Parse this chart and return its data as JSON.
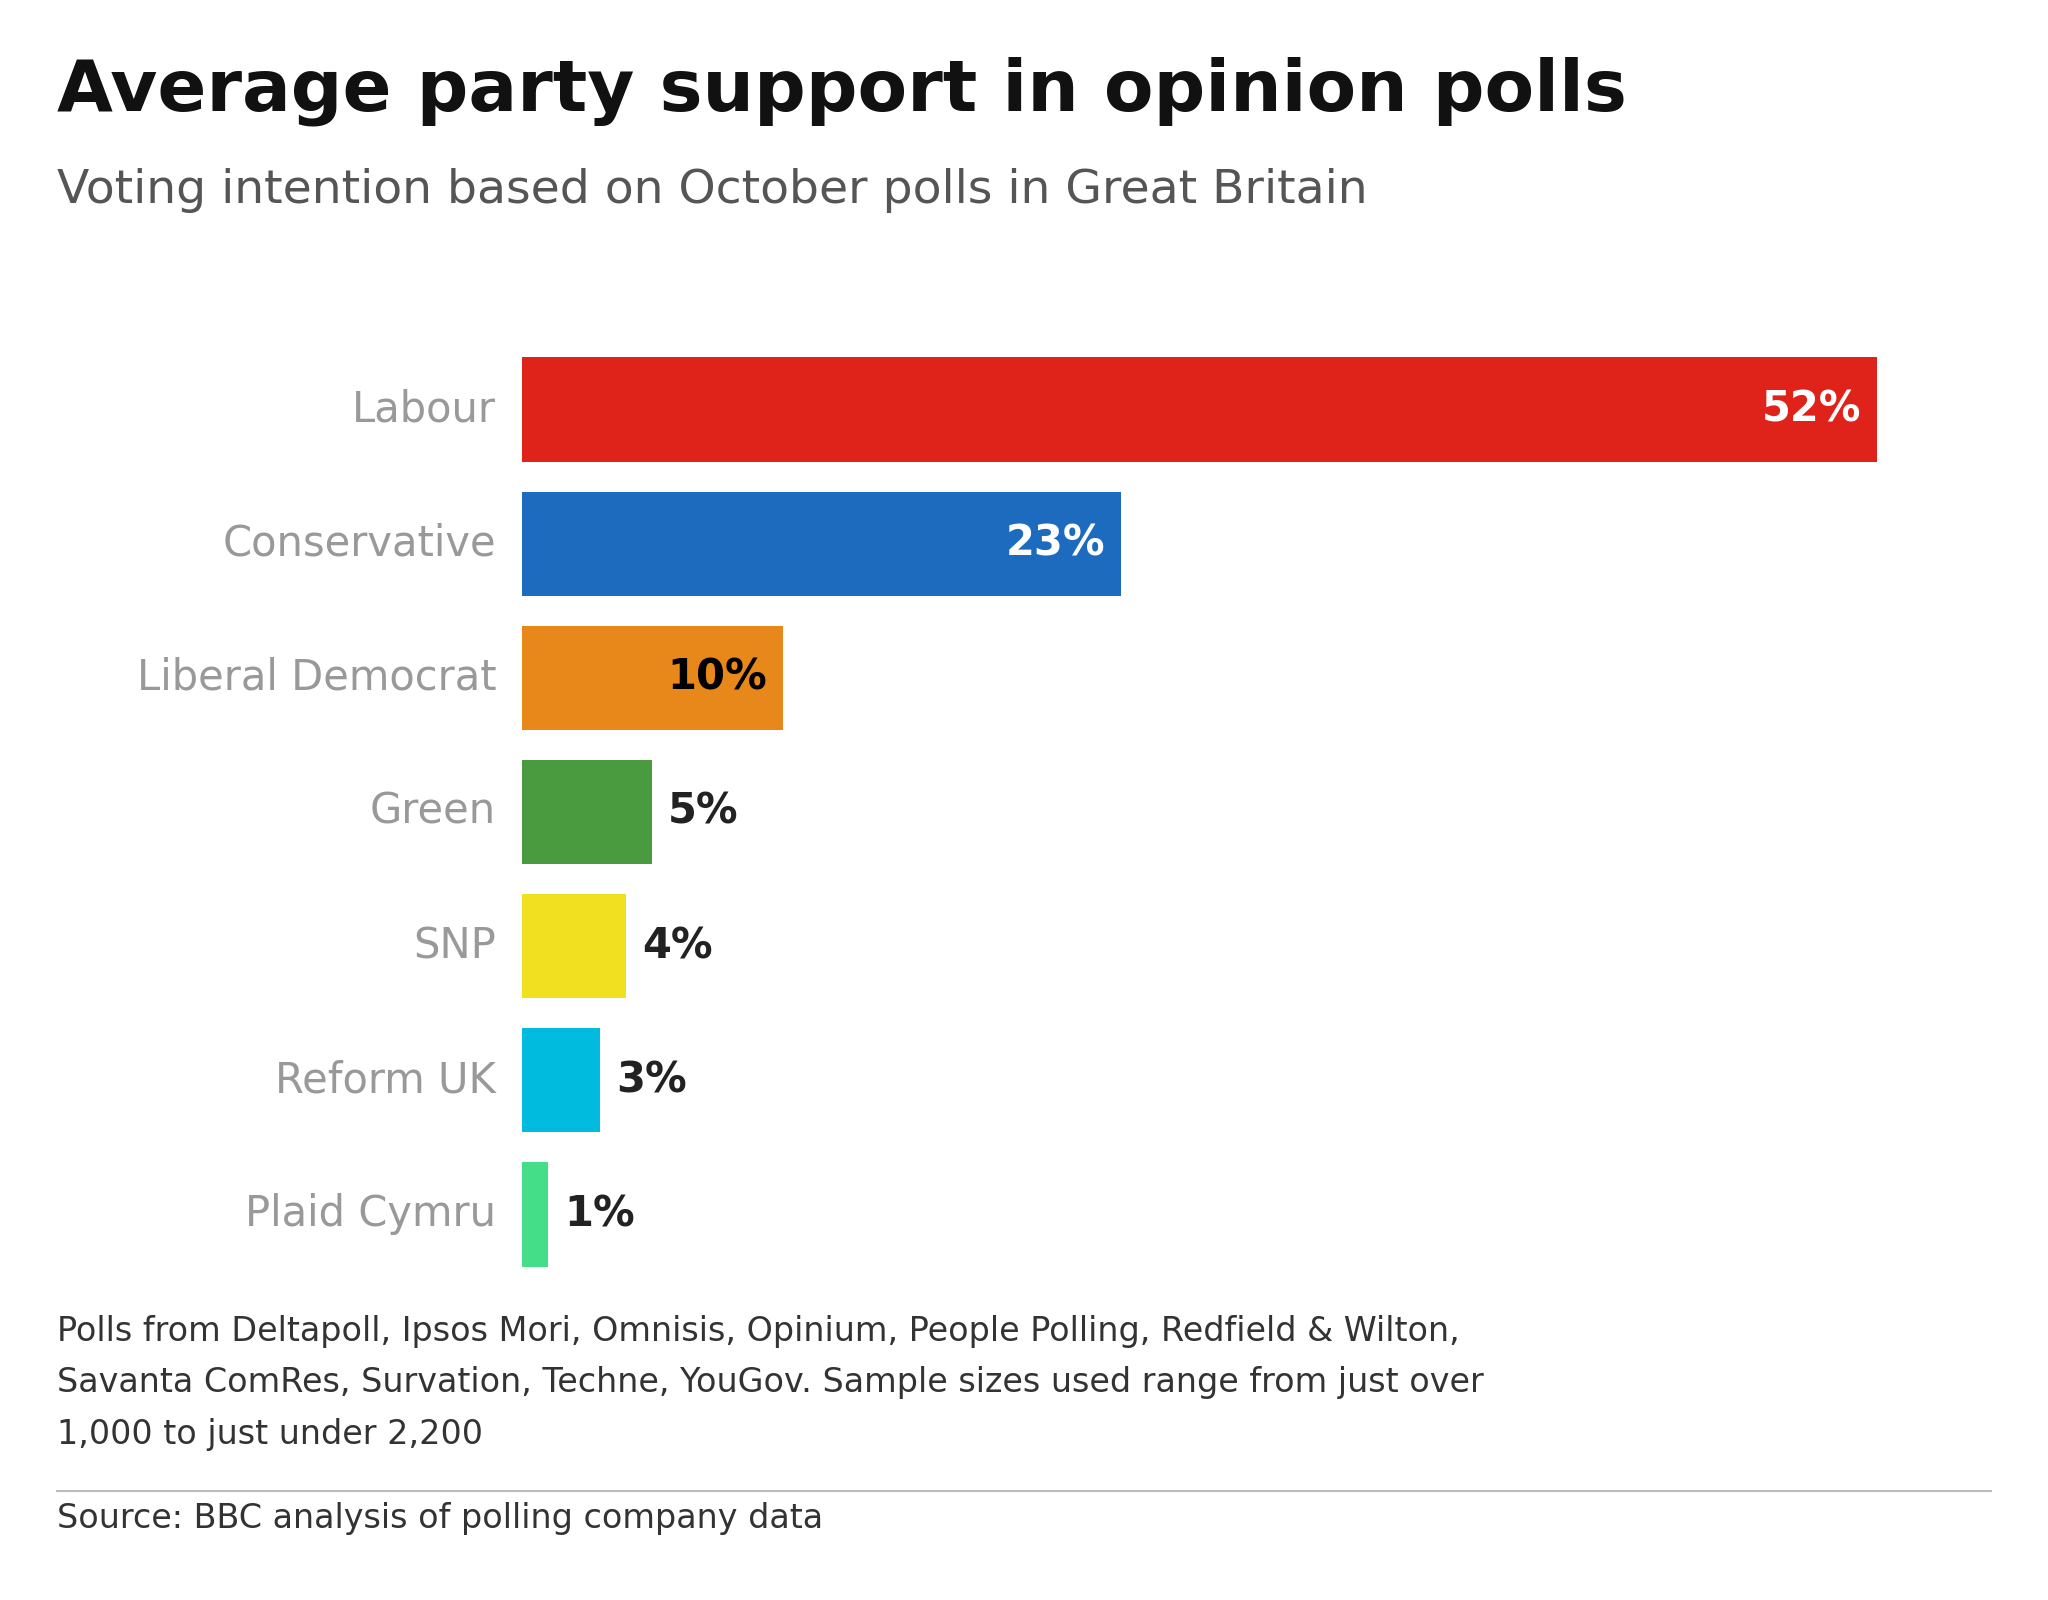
{
  "title": "Average party support in opinion polls",
  "subtitle": "Voting intention based on October polls in Great Britain",
  "parties": [
    "Labour",
    "Conservative",
    "Liberal Democrat",
    "Green",
    "SNP",
    "Reform UK",
    "Plaid Cymru"
  ],
  "values": [
    52,
    23,
    10,
    5,
    4,
    3,
    1
  ],
  "colors": [
    "#E0231A",
    "#1C6BBF",
    "#E8871A",
    "#4A9B3F",
    "#F0E020",
    "#00BBDD",
    "#44DD88"
  ],
  "label_colors": [
    "white",
    "white",
    "black",
    "black",
    "black",
    "black",
    "black"
  ],
  "footnote_line1": "Polls from Deltapoll, Ipsos Mori, Omnisis, Opinium, People Polling, Redfield & Wilton,",
  "footnote_line2": "Savanta ComRes, Survation, Techne, YouGov. Sample sizes used range from just over",
  "footnote_line3": "1,000 to just under 2,200",
  "source": "Source: BBC analysis of polling company data",
  "bg_color": "#ffffff",
  "bar_label_fontsize": 30,
  "title_fontsize": 52,
  "subtitle_fontsize": 34,
  "footnote_fontsize": 24,
  "source_fontsize": 24,
  "party_label_color": "#999999",
  "party_label_fontsize": 30,
  "xlim": [
    0,
    57
  ]
}
